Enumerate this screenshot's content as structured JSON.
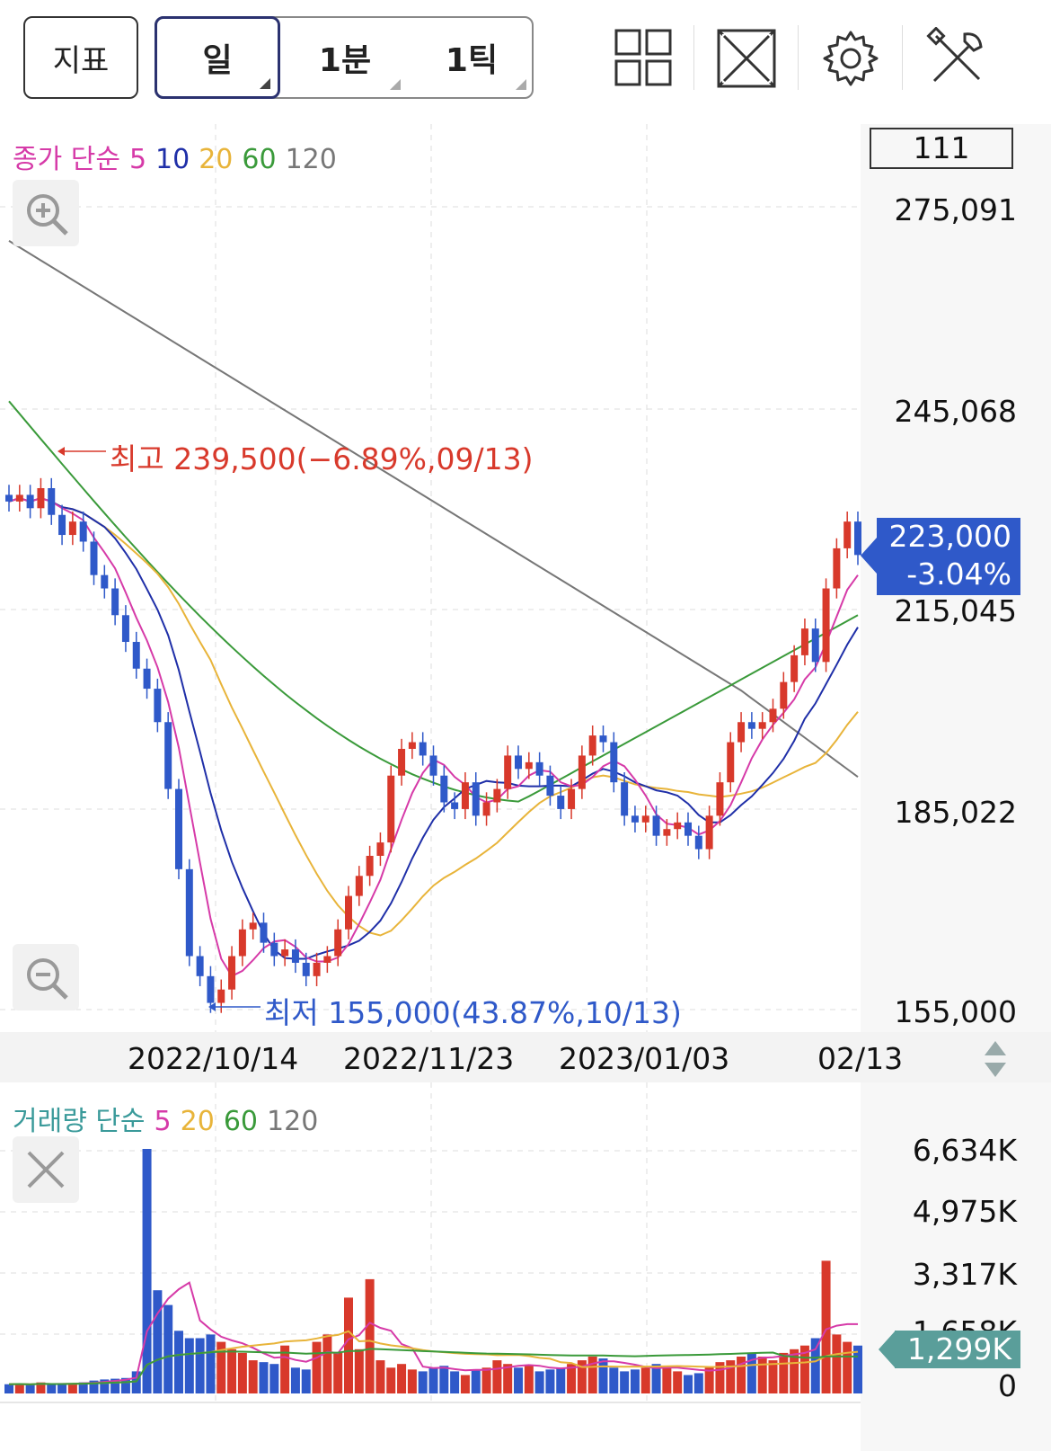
{
  "toolbar": {
    "indicator_label": "지표",
    "period_tabs": [
      {
        "label": "일",
        "active": true
      },
      {
        "label": "1분",
        "active": false
      },
      {
        "label": "1틱",
        "active": false
      }
    ],
    "icons": [
      "layout-grid-icon",
      "fullscreen-icon",
      "settings-gear-icon",
      "tools-icon"
    ]
  },
  "price_legend": {
    "title": "종가 단순",
    "periods": [
      {
        "label": "5",
        "color": "#d63aa8"
      },
      {
        "label": "10",
        "color": "#1f2fa8"
      },
      {
        "label": "20",
        "color": "#e8b43a"
      },
      {
        "label": "60",
        "color": "#3a9a3a"
      },
      {
        "label": "120",
        "color": "#777777"
      }
    ]
  },
  "count_box": "111",
  "price_axis": [
    "275,091",
    "245,068",
    "215,045",
    "185,022",
    "155,000"
  ],
  "current_price": {
    "value": "223,000",
    "change": "-3.04%",
    "color": "#2f59c9"
  },
  "high_annotation": "최고 239,500(−6.89%,09/13)",
  "low_annotation": "최저 155,000(43.87%,10/13)",
  "date_axis": [
    "2022/10/14",
    "2022/11/23",
    "2023/01/03",
    "02/13"
  ],
  "volume_legend": {
    "title": "거래량 단순",
    "periods": [
      {
        "label": "5",
        "color": "#d63aa8"
      },
      {
        "label": "20",
        "color": "#e8b43a"
      },
      {
        "label": "60",
        "color": "#3a9a3a"
      },
      {
        "label": "120",
        "color": "#777777"
      }
    ]
  },
  "volume_axis": [
    "6,634K",
    "4,975K",
    "3,317K",
    "1,658K",
    "0"
  ],
  "current_volume": "1,299K",
  "colors": {
    "up": "#d8392b",
    "down": "#2f59c9",
    "high_text": "#d8392b",
    "low_text": "#2f59c9"
  },
  "chart_data": {
    "type": "candlestick",
    "price_range": [
      155000,
      275091
    ],
    "closes_approx": [
      231000,
      232000,
      230000,
      233000,
      229000,
      226000,
      228000,
      225000,
      220000,
      218000,
      214000,
      210000,
      206000,
      203000,
      198000,
      188000,
      176000,
      163000,
      160000,
      156000,
      158000,
      163000,
      167000,
      168000,
      165000,
      163000,
      164000,
      162000,
      160000,
      162000,
      163000,
      167000,
      172000,
      175000,
      178000,
      180000,
      190000,
      194000,
      195000,
      193000,
      190000,
      186000,
      185000,
      189000,
      184000,
      186000,
      188000,
      193000,
      191000,
      192000,
      190000,
      187000,
      185000,
      188000,
      193000,
      196000,
      195000,
      189000,
      184000,
      183000,
      184000,
      181000,
      182000,
      183000,
      181000,
      179000,
      184000,
      189000,
      195000,
      198000,
      197000,
      198000,
      200000,
      204000,
      208000,
      212000,
      207000,
      218000,
      224000,
      228000,
      223000
    ],
    "volumes_k": [
      250,
      260,
      230,
      300,
      240,
      260,
      280,
      300,
      350,
      380,
      400,
      420,
      600,
      6634,
      2800,
      2400,
      1700,
      1500,
      1500,
      1600,
      1400,
      1200,
      1100,
      900,
      850,
      800,
      1300,
      700,
      650,
      1400,
      1600,
      1100,
      2600,
      1200,
      3100,
      900,
      700,
      800,
      650,
      600,
      700,
      750,
      600,
      500,
      650,
      700,
      900,
      800,
      700,
      750,
      600,
      650,
      700,
      800,
      900,
      1000,
      950,
      700,
      600,
      650,
      700,
      800,
      750,
      600,
      500,
      550,
      700,
      850,
      900,
      1000,
      1100,
      1000,
      900,
      1100,
      1200,
      1300,
      1500,
      3600,
      1600,
      1400,
      1299
    ]
  }
}
